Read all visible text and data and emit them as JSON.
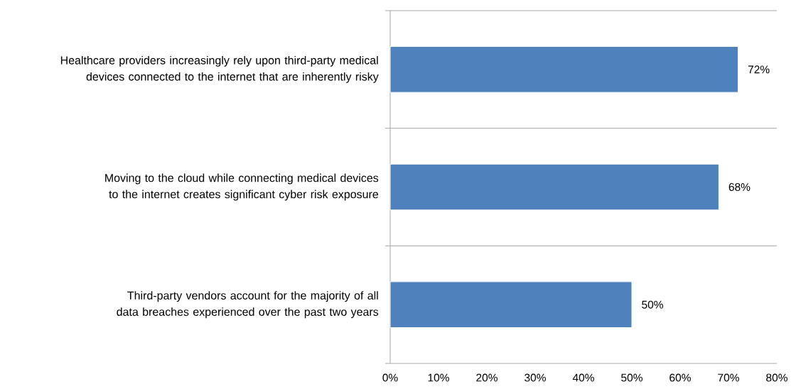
{
  "chart_data": {
    "type": "bar",
    "orientation": "horizontal",
    "categories": [
      "Healthcare providers increasingly rely upon third-party medical devices connected to the internet that are inherently risky",
      "Moving to the cloud while connecting medical devices to the internet creates significant cyber risk exposure",
      "Third-party vendors account for the majority of all data breaches experienced over the past two years"
    ],
    "values": [
      72,
      68,
      50
    ],
    "value_labels": [
      "72%",
      "68%",
      "50%"
    ],
    "color": "#4f81bd",
    "xlim": [
      0,
      80
    ],
    "xticks": [
      {
        "value": 0,
        "label": "0%"
      },
      {
        "value": 10,
        "label": "10%"
      },
      {
        "value": 20,
        "label": "20%"
      },
      {
        "value": 30,
        "label": "30%"
      },
      {
        "value": 40,
        "label": "40%"
      },
      {
        "value": 50,
        "label": "50%"
      },
      {
        "value": 60,
        "label": "60%"
      },
      {
        "value": 70,
        "label": "70%"
      },
      {
        "value": 80,
        "label": "80%"
      }
    ],
    "grid": "y"
  }
}
